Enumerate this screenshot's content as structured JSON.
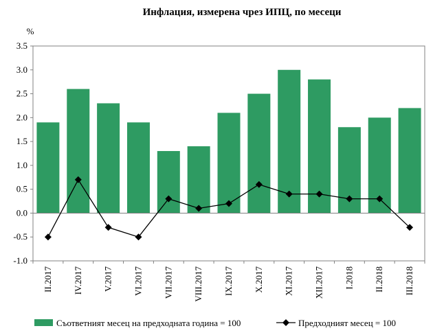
{
  "chart_data": {
    "type": "bar",
    "title": "Инфлация, измерена чрез ИПЦ, по месеци",
    "ylabel": "%",
    "xlabel": "",
    "ylim": [
      -1.0,
      3.5
    ],
    "yticks": [
      "3.5",
      "3.0",
      "2.5",
      "2.0",
      "1.5",
      "1.0",
      "0.5",
      "0.0",
      "-0.5",
      "-1.0"
    ],
    "ytick_values": [
      3.5,
      3.0,
      2.5,
      2.0,
      1.5,
      1.0,
      0.5,
      0.0,
      -0.5,
      -1.0
    ],
    "grid": false,
    "legend_position": "bottom",
    "categories": [
      "II.2017",
      "IV.2017",
      "V.2017",
      "VI.2017",
      "VII.2017",
      "VIII.2017",
      "IX.2017",
      "X.2017",
      "XI.2017",
      "XII.2017",
      "I.2018",
      "II.2018",
      "III.2018"
    ],
    "series": [
      {
        "name": "Съответният месец на предходната година = 100",
        "type": "bar",
        "color": "#2e9b62",
        "values": [
          1.9,
          2.6,
          2.3,
          1.9,
          1.3,
          1.4,
          2.1,
          2.5,
          3.0,
          2.8,
          1.8,
          2.0,
          2.2
        ]
      },
      {
        "name": "Предходният месец = 100",
        "type": "line",
        "color": "#000000",
        "values": [
          -0.5,
          0.7,
          -0.3,
          -0.5,
          0.3,
          0.1,
          0.2,
          0.6,
          0.4,
          0.4,
          0.3,
          0.3,
          -0.3
        ]
      }
    ]
  }
}
